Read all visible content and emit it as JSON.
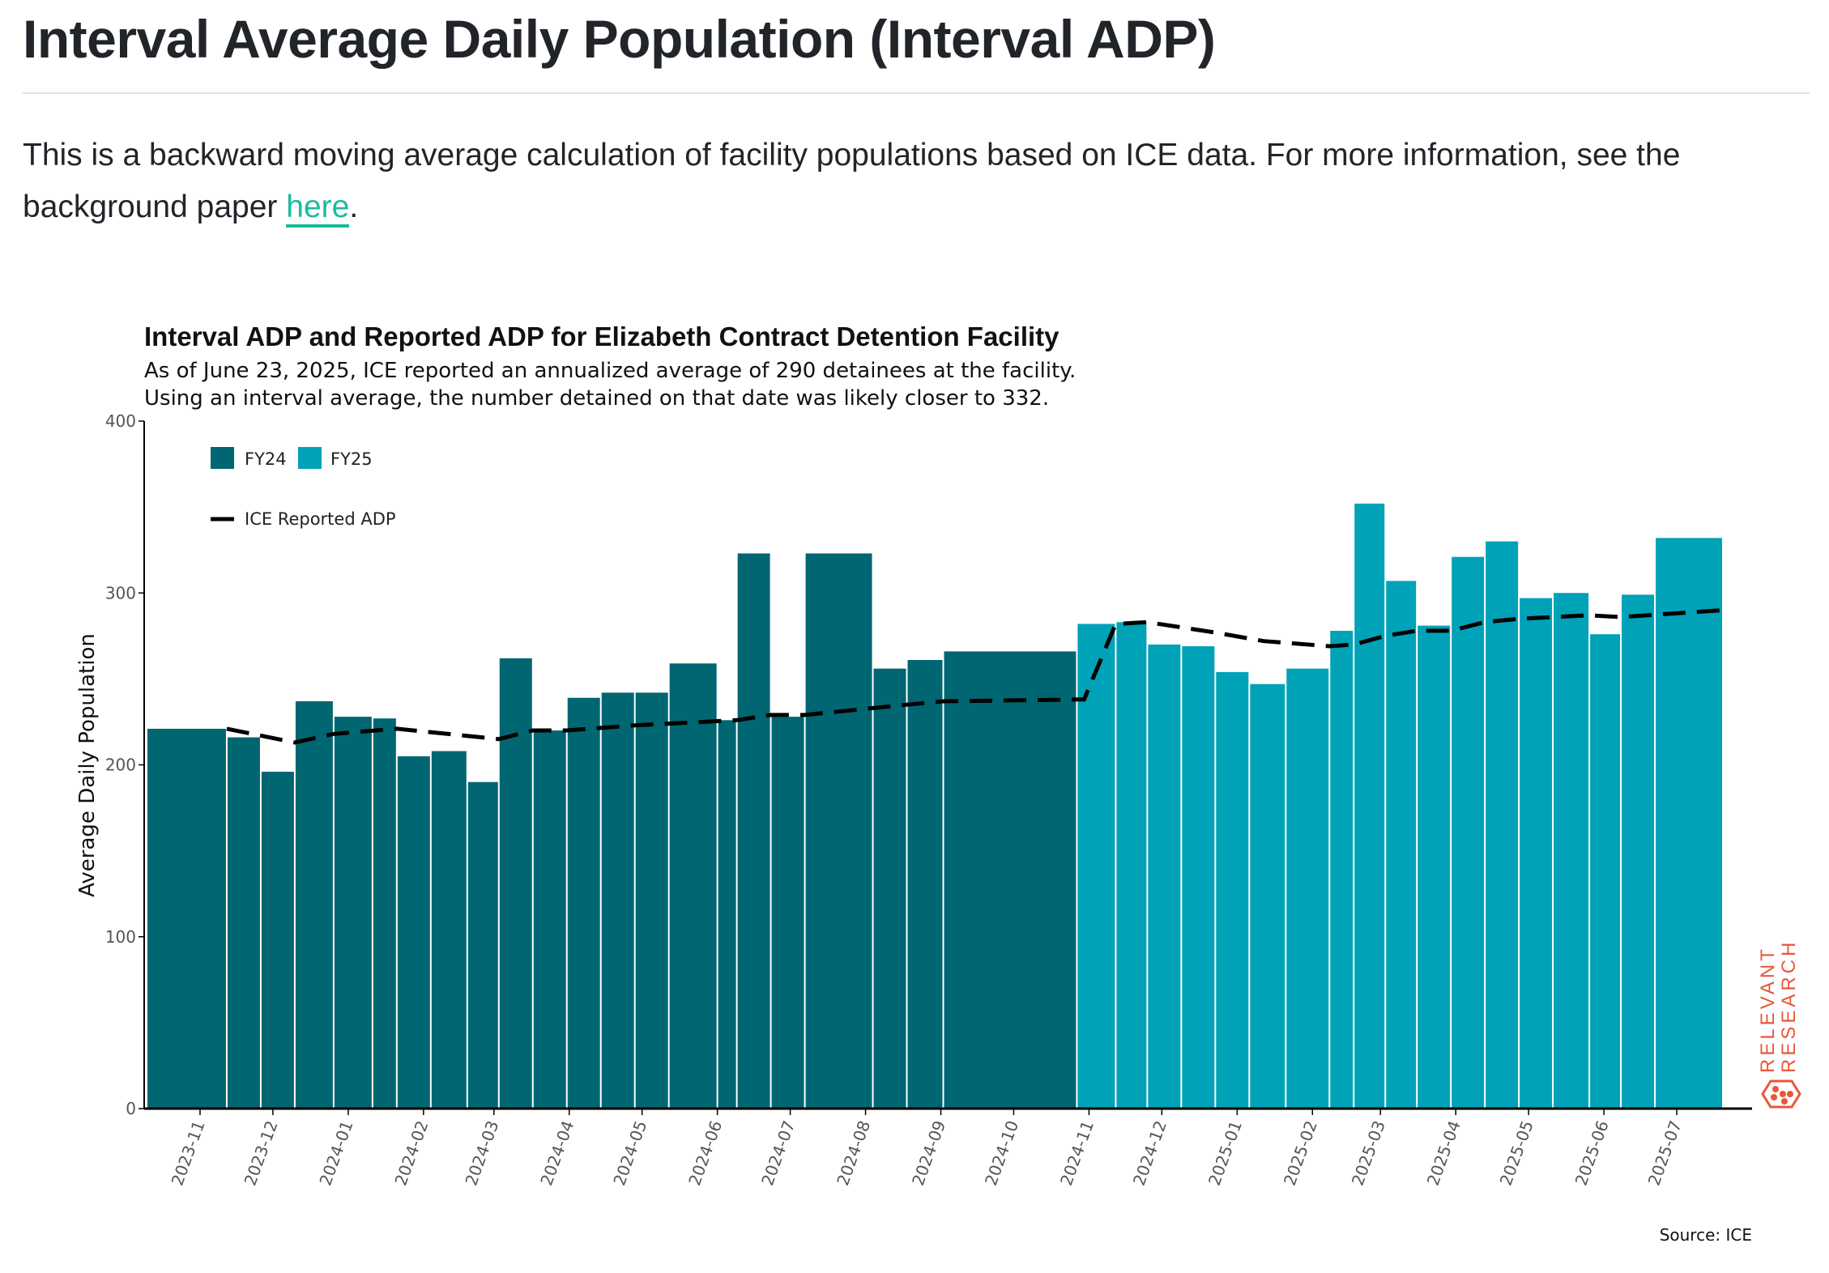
{
  "page": {
    "title": "Interval Average Daily Population (Interval ADP)",
    "intro_text": "This is a backward moving average calculation of facility populations based on ICE data. For more information, see the background paper ",
    "intro_link": "here",
    "intro_end": "."
  },
  "chart_data": {
    "type": "bar",
    "title": "Interval ADP and Reported ADP for Elizabeth Contract Detention Facility",
    "subtitle_lines": [
      "As of June 23, 2025, ICE reported an annualized average of 290 detainees at the facility.",
      "Using an interval average, the number detained on that date was likely closer to 332."
    ],
    "xlabel": "",
    "ylabel": "Average Daily Population",
    "ylim": [
      0,
      400
    ],
    "yticks": [
      0,
      100,
      200,
      300,
      400
    ],
    "xlim": [
      "2023-10-09",
      "2025-08-01"
    ],
    "xticks": [
      "2023-11",
      "2023-12",
      "2024-01",
      "2024-02",
      "2024-03",
      "2024-04",
      "2024-05",
      "2024-06",
      "2024-07",
      "2024-08",
      "2024-09",
      "2024-10",
      "2024-11",
      "2024-12",
      "2025-01",
      "2025-02",
      "2025-03",
      "2025-04",
      "2025-05",
      "2025-06",
      "2025-07"
    ],
    "legend": {
      "placement": "top-left",
      "entries": [
        "FY24",
        "FY25",
        "ICE Reported ADP"
      ]
    },
    "colors": {
      "FY24": "#006672",
      "FY25": "#00a2b8",
      "ice_line": "#000000",
      "brand": "#e8573a"
    },
    "bars": [
      {
        "start": "2023-10-10",
        "end": "2023-11-12",
        "value": 221,
        "fy": "FY24"
      },
      {
        "start": "2023-11-12",
        "end": "2023-11-26",
        "value": 216,
        "fy": "FY24"
      },
      {
        "start": "2023-11-26",
        "end": "2023-12-10",
        "value": 196,
        "fy": "FY24"
      },
      {
        "start": "2023-12-10",
        "end": "2023-12-26",
        "value": 237,
        "fy": "FY24"
      },
      {
        "start": "2023-12-26",
        "end": "2024-01-11",
        "value": 228,
        "fy": "FY24"
      },
      {
        "start": "2024-01-11",
        "end": "2024-01-21",
        "value": 227,
        "fy": "FY24"
      },
      {
        "start": "2024-01-21",
        "end": "2024-02-04",
        "value": 205,
        "fy": "FY24"
      },
      {
        "start": "2024-02-04",
        "end": "2024-02-19",
        "value": 208,
        "fy": "FY24"
      },
      {
        "start": "2024-02-19",
        "end": "2024-03-03",
        "value": 190,
        "fy": "FY24"
      },
      {
        "start": "2024-03-03",
        "end": "2024-03-17",
        "value": 262,
        "fy": "FY24"
      },
      {
        "start": "2024-03-17",
        "end": "2024-03-31",
        "value": 220,
        "fy": "FY24"
      },
      {
        "start": "2024-03-31",
        "end": "2024-04-14",
        "value": 239,
        "fy": "FY24"
      },
      {
        "start": "2024-04-14",
        "end": "2024-04-28",
        "value": 242,
        "fy": "FY24"
      },
      {
        "start": "2024-04-28",
        "end": "2024-05-12",
        "value": 242,
        "fy": "FY24"
      },
      {
        "start": "2024-05-12",
        "end": "2024-06-01",
        "value": 259,
        "fy": "FY24"
      },
      {
        "start": "2024-06-01",
        "end": "2024-06-09",
        "value": 226,
        "fy": "FY24"
      },
      {
        "start": "2024-06-09",
        "end": "2024-06-23",
        "value": 323,
        "fy": "FY24"
      },
      {
        "start": "2024-06-23",
        "end": "2024-07-07",
        "value": 228,
        "fy": "FY24"
      },
      {
        "start": "2024-07-07",
        "end": "2024-08-04",
        "value": 323,
        "fy": "FY24"
      },
      {
        "start": "2024-08-04",
        "end": "2024-08-18",
        "value": 256,
        "fy": "FY24"
      },
      {
        "start": "2024-08-18",
        "end": "2024-09-02",
        "value": 261,
        "fy": "FY24"
      },
      {
        "start": "2024-09-02",
        "end": "2024-10-27",
        "value": 266,
        "fy": "FY24"
      },
      {
        "start": "2024-10-27",
        "end": "2024-11-12",
        "value": 282,
        "fy": "FY25"
      },
      {
        "start": "2024-11-12",
        "end": "2024-11-25",
        "value": 283,
        "fy": "FY25"
      },
      {
        "start": "2024-11-25",
        "end": "2024-12-09",
        "value": 270,
        "fy": "FY25"
      },
      {
        "start": "2024-12-09",
        "end": "2024-12-23",
        "value": 269,
        "fy": "FY25"
      },
      {
        "start": "2024-12-23",
        "end": "2025-01-06",
        "value": 254,
        "fy": "FY25"
      },
      {
        "start": "2025-01-06",
        "end": "2025-01-21",
        "value": 247,
        "fy": "FY25"
      },
      {
        "start": "2025-01-21",
        "end": "2025-02-08",
        "value": 256,
        "fy": "FY25"
      },
      {
        "start": "2025-02-08",
        "end": "2025-02-18",
        "value": 278,
        "fy": "FY25"
      },
      {
        "start": "2025-02-18",
        "end": "2025-03-03",
        "value": 352,
        "fy": "FY25"
      },
      {
        "start": "2025-03-03",
        "end": "2025-03-16",
        "value": 307,
        "fy": "FY25"
      },
      {
        "start": "2025-03-16",
        "end": "2025-03-30",
        "value": 281,
        "fy": "FY25"
      },
      {
        "start": "2025-03-30",
        "end": "2025-04-13",
        "value": 321,
        "fy": "FY25"
      },
      {
        "start": "2025-04-13",
        "end": "2025-04-27",
        "value": 330,
        "fy": "FY25"
      },
      {
        "start": "2025-04-27",
        "end": "2025-05-11",
        "value": 297,
        "fy": "FY25"
      },
      {
        "start": "2025-05-11",
        "end": "2025-05-26",
        "value": 300,
        "fy": "FY25"
      },
      {
        "start": "2025-05-26",
        "end": "2025-06-08",
        "value": 276,
        "fy": "FY25"
      },
      {
        "start": "2025-06-08",
        "end": "2025-06-22",
        "value": 299,
        "fy": "FY25"
      },
      {
        "start": "2025-06-22",
        "end": "2025-07-20",
        "value": 332,
        "fy": "FY25"
      }
    ],
    "ice_reported_adp": [
      {
        "date": "2023-11-12",
        "value": 221
      },
      {
        "date": "2023-12-10",
        "value": 213
      },
      {
        "date": "2023-12-26",
        "value": 218
      },
      {
        "date": "2024-01-21",
        "value": 221
      },
      {
        "date": "2024-03-03",
        "value": 215
      },
      {
        "date": "2024-03-17",
        "value": 220
      },
      {
        "date": "2024-03-31",
        "value": 220
      },
      {
        "date": "2024-04-28",
        "value": 223
      },
      {
        "date": "2024-06-09",
        "value": 226
      },
      {
        "date": "2024-06-23",
        "value": 229
      },
      {
        "date": "2024-07-07",
        "value": 229
      },
      {
        "date": "2024-08-18",
        "value": 235
      },
      {
        "date": "2024-09-02",
        "value": 237
      },
      {
        "date": "2024-10-27",
        "value": 238
      },
      {
        "date": "2024-10-30",
        "value": 238
      },
      {
        "date": "2024-11-12",
        "value": 282
      },
      {
        "date": "2024-11-25",
        "value": 283
      },
      {
        "date": "2024-12-23",
        "value": 277
      },
      {
        "date": "2025-01-12",
        "value": 272
      },
      {
        "date": "2025-02-08",
        "value": 269
      },
      {
        "date": "2025-02-18",
        "value": 270
      },
      {
        "date": "2025-03-03",
        "value": 275
      },
      {
        "date": "2025-03-16",
        "value": 278
      },
      {
        "date": "2025-03-30",
        "value": 278
      },
      {
        "date": "2025-04-13",
        "value": 283
      },
      {
        "date": "2025-04-27",
        "value": 285
      },
      {
        "date": "2025-05-26",
        "value": 287
      },
      {
        "date": "2025-06-08",
        "value": 286
      },
      {
        "date": "2025-07-20",
        "value": 290
      }
    ],
    "source": "Source: ICE",
    "brand": [
      "RELEVANT",
      "RESEARCH"
    ]
  }
}
